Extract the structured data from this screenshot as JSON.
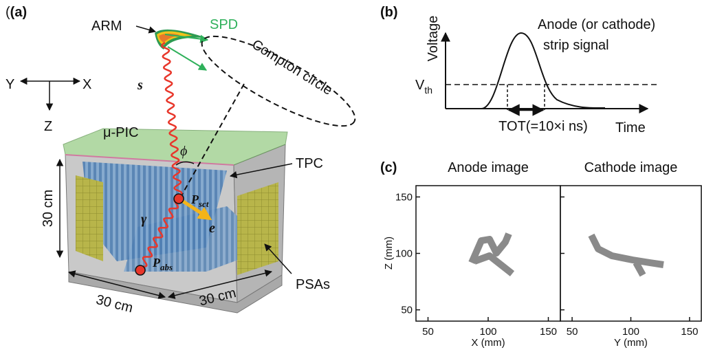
{
  "panel_a": {
    "label": "(a)",
    "arm": "ARM",
    "spd": "SPD",
    "compton_circle": "Compton circle",
    "axes": {
      "y": "Y",
      "x": "X",
      "z": "Z"
    },
    "s_vector": "s⃗",
    "mu_pic": "μ-PIC",
    "tpc": "TPC",
    "phi": "ϕ",
    "p_sct": {
      "main": "P",
      "sub": "sct"
    },
    "e_vector": "e⃗",
    "gamma_vector": "γ⃗",
    "p_abs": {
      "main": "P",
      "sub": "abs"
    },
    "dimensions": [
      "30 cm",
      "30 cm",
      "30 cm"
    ],
    "psas": "PSAs"
  },
  "panel_b": {
    "label": "(b)",
    "ylabel": "Voltage",
    "title_line1": "Anode (or cathode)",
    "title_line2": "strip signal",
    "vth": {
      "main": "V",
      "sub": "th"
    },
    "tot": "TOT(=10×i ns)",
    "xlabel": "Time"
  },
  "panel_c": {
    "label": "(c)",
    "ylabel": "Z (mm)",
    "ylim": [
      40,
      160
    ],
    "yticks": [
      50,
      100,
      150
    ],
    "plots": [
      {
        "title": "Anode image",
        "xlabel": "X (mm)",
        "xlim": [
          40,
          160
        ],
        "xticks": [
          50,
          100,
          150
        ]
      },
      {
        "title": "Cathode image",
        "xlabel": "Y (mm)",
        "xlim": [
          40,
          160
        ],
        "xticks": [
          50,
          100,
          150
        ]
      }
    ]
  }
}
